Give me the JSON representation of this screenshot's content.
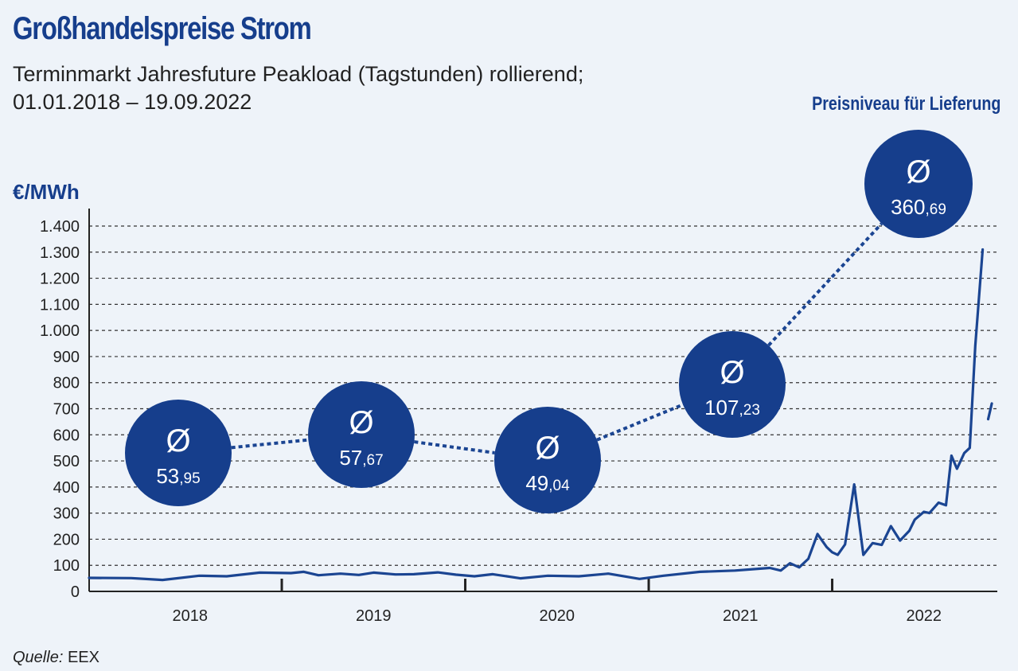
{
  "header": {
    "title": "Großhandelspreise Strom",
    "subtitle_line1": "Terminmarkt Jahresfuture Peakload (Tagstunden) rollierend;",
    "subtitle_line2": "01.01.2018 – 19.09.2022",
    "delivery_note": "Preisniveau für Lieferung"
  },
  "footer": {
    "source_label": "Quelle:",
    "source_value": "EEX"
  },
  "colors": {
    "accent": "#163e8c",
    "line": "#1b4592",
    "grid": "#333333",
    "background": "#eef3f9"
  },
  "chart_data": {
    "type": "line",
    "title": "Großhandelspreise Strom",
    "ylabel": "€/MWh",
    "xlabel": "",
    "ylim": [
      0,
      1400
    ],
    "xlim": [
      2017.95,
      2022.9
    ],
    "yticks": [
      {
        "value": 0,
        "label": "0"
      },
      {
        "value": 100,
        "label": "100"
      },
      {
        "value": 200,
        "label": "200"
      },
      {
        "value": 300,
        "label": "300"
      },
      {
        "value": 400,
        "label": "400"
      },
      {
        "value": 500,
        "label": "500"
      },
      {
        "value": 600,
        "label": "600"
      },
      {
        "value": 700,
        "label": "700"
      },
      {
        "value": 800,
        "label": "800"
      },
      {
        "value": 900,
        "label": "900"
      },
      {
        "value": 1000,
        "label": "1.000"
      },
      {
        "value": 1100,
        "label": "1.100"
      },
      {
        "value": 1200,
        "label": "1.200"
      },
      {
        "value": 1300,
        "label": "1.300"
      },
      {
        "value": 1400,
        "label": "1.400"
      }
    ],
    "xcategories": [
      {
        "label": "2018",
        "center": 2018.5
      },
      {
        "label": "2019",
        "center": 2019.5
      },
      {
        "label": "2020",
        "center": 2020.5
      },
      {
        "label": "2021",
        "center": 2021.5
      },
      {
        "label": "2022",
        "center": 2022.5
      }
    ],
    "year_separators": [
      2019,
      2020,
      2021,
      2022
    ],
    "grid": true,
    "series": [
      {
        "x": [
          2017.95,
          2018.18,
          2018.35,
          2018.55,
          2018.7,
          2018.88,
          2019.05,
          2019.12,
          2019.2,
          2019.32,
          2019.42,
          2019.5,
          2019.62,
          2019.72,
          2019.85,
          2019.95,
          2020.05,
          2020.15,
          2020.3,
          2020.45,
          2020.62,
          2020.78,
          2020.95,
          2021.08,
          2021.28,
          2021.47,
          2021.66,
          2021.72,
          2021.77,
          2021.82,
          2021.87,
          2021.92,
          2021.97,
          2022.0,
          2022.03,
          2022.07,
          2022.12,
          2022.17,
          2022.22,
          2022.27,
          2022.32,
          2022.37,
          2022.42,
          2022.45,
          2022.5,
          2022.53,
          2022.58,
          2022.62,
          2022.65,
          2022.68,
          2022.72,
          2022.75,
          2022.78,
          2022.82
        ],
        "y": [
          52,
          51,
          44,
          60,
          58,
          72,
          70,
          75,
          62,
          68,
          63,
          72,
          65,
          66,
          73,
          64,
          58,
          66,
          50,
          60,
          58,
          68,
          48,
          60,
          75,
          80,
          90,
          80,
          108,
          92,
          125,
          220,
          170,
          150,
          140,
          180,
          410,
          140,
          185,
          178,
          250,
          195,
          232,
          275,
          305,
          300,
          340,
          330,
          520,
          470,
          530,
          550,
          940,
          1310
        ]
      },
      {
        "x": [
          2022.85,
          2022.87
        ],
        "y": [
          660,
          720
        ]
      }
    ],
    "annotations": [
      {
        "symbol": "Ø",
        "integer": "53",
        "decimals": ",95",
        "year": "2018"
      },
      {
        "symbol": "Ø",
        "integer": "57",
        "decimals": ",67",
        "year": "2019"
      },
      {
        "symbol": "Ø",
        "integer": "49",
        "decimals": ",04",
        "year": "2020"
      },
      {
        "symbol": "Ø",
        "integer": "107",
        "decimals": ",23",
        "year": "2021"
      },
      {
        "symbol": "Ø",
        "integer": "360",
        "decimals": ",69",
        "year": "2022"
      }
    ]
  }
}
